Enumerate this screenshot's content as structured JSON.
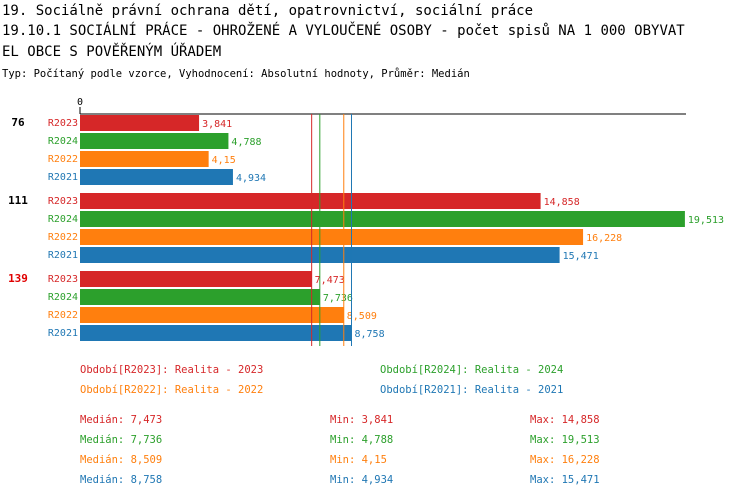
{
  "chart_data": {
    "type": "grouped-hbar",
    "title": [
      "19. Sociálně právní ochrana dětí, opatrovnictví, sociální práce",
      "19.10.1 SOCIÁLNÍ PRÁCE - OHROŽENÉ A VYLOUČENÉ OSOBY - počet spisů NA 1 000 OBYVAT",
      "EL OBCE S POVĚŘENÝM ÚŘADEM"
    ],
    "subtitle": "Typ: Počítaný podle vzorce, Vyhodnocení: Absolutní hodnoty, Průměr: Medián",
    "categories": [
      "76",
      "111",
      "139"
    ],
    "category_colors": [
      "#000000",
      "#000000",
      "#e00000"
    ],
    "xlim": [
      0,
      20
    ],
    "xticks": [
      0
    ],
    "series": [
      {
        "name": "R2023",
        "legend": "Období[R2023]: Realita - 2023",
        "color": "#d62728",
        "values": [
          3.841,
          14.858,
          7.473
        ],
        "value_labels": [
          "3,841",
          "14,858",
          "7,473"
        ]
      },
      {
        "name": "R2024",
        "legend": "Období[R2024]: Realita - 2024",
        "color": "#2ca02c",
        "values": [
          4.788,
          19.513,
          7.736
        ],
        "value_labels": [
          "4,788",
          "19,513",
          "7,736"
        ]
      },
      {
        "name": "R2022",
        "legend": "Období[R2022]: Realita - 2022",
        "color": "#ff7f0e",
        "values": [
          4.15,
          16.228,
          8.509
        ],
        "value_labels": [
          "4,15",
          "16,228",
          "8,509"
        ]
      },
      {
        "name": "R2021",
        "legend": "Období[R2021]: Realita - 2021",
        "color": "#1f77b4",
        "values": [
          4.934,
          15.471,
          8.758
        ],
        "value_labels": [
          "4,934",
          "15,471",
          "8,758"
        ]
      }
    ],
    "summary": [
      {
        "median": {
          "value": 7.473,
          "label": "Medián: 7,473"
        },
        "min": {
          "value": 3.841,
          "label": "Min: 3,841"
        },
        "max": {
          "value": 14.858,
          "label": "Max: 14,858"
        }
      },
      {
        "median": {
          "value": 7.736,
          "label": "Medián: 7,736"
        },
        "min": {
          "value": 4.788,
          "label": "Min: 4,788"
        },
        "max": {
          "value": 19.513,
          "label": "Max: 19,513"
        }
      },
      {
        "median": {
          "value": 8.509,
          "label": "Medián: 8,509"
        },
        "min": {
          "value": 4.15,
          "label": "Min: 4,15"
        },
        "max": {
          "value": 16.228,
          "label": "Max: 16,228"
        }
      },
      {
        "median": {
          "value": 8.758,
          "label": "Medián: 8,758"
        },
        "min": {
          "value": 4.934,
          "label": "Min: 4,934"
        },
        "max": {
          "value": 15.471,
          "label": "Max: 15,471"
        }
      }
    ]
  }
}
